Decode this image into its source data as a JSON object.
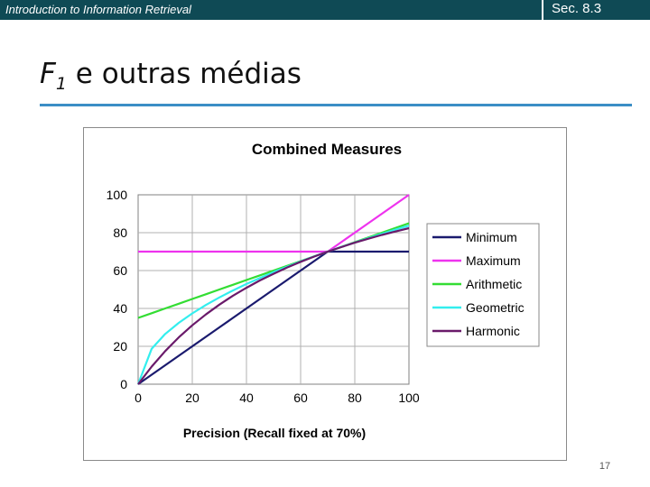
{
  "header": {
    "course": "Introduction to Information Retrieval",
    "section": "Sec. 8.3"
  },
  "slide": {
    "title_main": "F",
    "title_sub": "1",
    "title_rest": " e outras médias",
    "page_number": "17"
  },
  "chart_data": {
    "type": "line",
    "title": "Combined Measures",
    "xlabel": "Precision (Recall fixed at 70%)",
    "ylabel": "",
    "xlim": [
      0,
      100
    ],
    "ylim": [
      0,
      100
    ],
    "xticks": [
      0,
      20,
      40,
      60,
      80,
      100
    ],
    "yticks": [
      0,
      20,
      40,
      60,
      80,
      100
    ],
    "grid": true,
    "legend": "right",
    "x": [
      0,
      5,
      10,
      15,
      20,
      25,
      30,
      35,
      40,
      45,
      50,
      55,
      60,
      65,
      70,
      75,
      80,
      85,
      90,
      95,
      100
    ],
    "series": [
      {
        "name": "Minimum",
        "color": "#1a1a6e",
        "values": [
          0,
          5,
          10,
          15,
          20,
          25,
          30,
          35,
          40,
          45,
          50,
          55,
          60,
          65,
          70,
          70,
          70,
          70,
          70,
          70,
          70
        ]
      },
      {
        "name": "Maximum",
        "color": "#ee33ee",
        "values": [
          70,
          70,
          70,
          70,
          70,
          70,
          70,
          70,
          70,
          70,
          70,
          70,
          70,
          70,
          70,
          75,
          80,
          85,
          90,
          95,
          100
        ]
      },
      {
        "name": "Arithmetic",
        "color": "#33dd33",
        "values": [
          35,
          37.5,
          40,
          42.5,
          45,
          47.5,
          50,
          52.5,
          55,
          57.5,
          60,
          62.5,
          65,
          67.5,
          70,
          72.5,
          75,
          77.5,
          80,
          82.5,
          85
        ]
      },
      {
        "name": "Geometric",
        "color": "#33eeee",
        "values": [
          0,
          18.7,
          26.5,
          32.4,
          37.4,
          41.8,
          45.8,
          49.5,
          52.9,
          56.1,
          59.2,
          62.0,
          64.8,
          67.5,
          70,
          72.5,
          74.8,
          77.1,
          79.4,
          81.6,
          83.7
        ]
      },
      {
        "name": "Harmonic",
        "color": "#6a1a6a",
        "values": [
          0,
          9.3,
          17.5,
          24.7,
          31.1,
          36.8,
          42.0,
          46.7,
          50.9,
          54.8,
          58.3,
          61.6,
          64.6,
          67.4,
          70,
          72.4,
          74.7,
          76.8,
          78.8,
          80.6,
          82.4
        ]
      }
    ]
  }
}
